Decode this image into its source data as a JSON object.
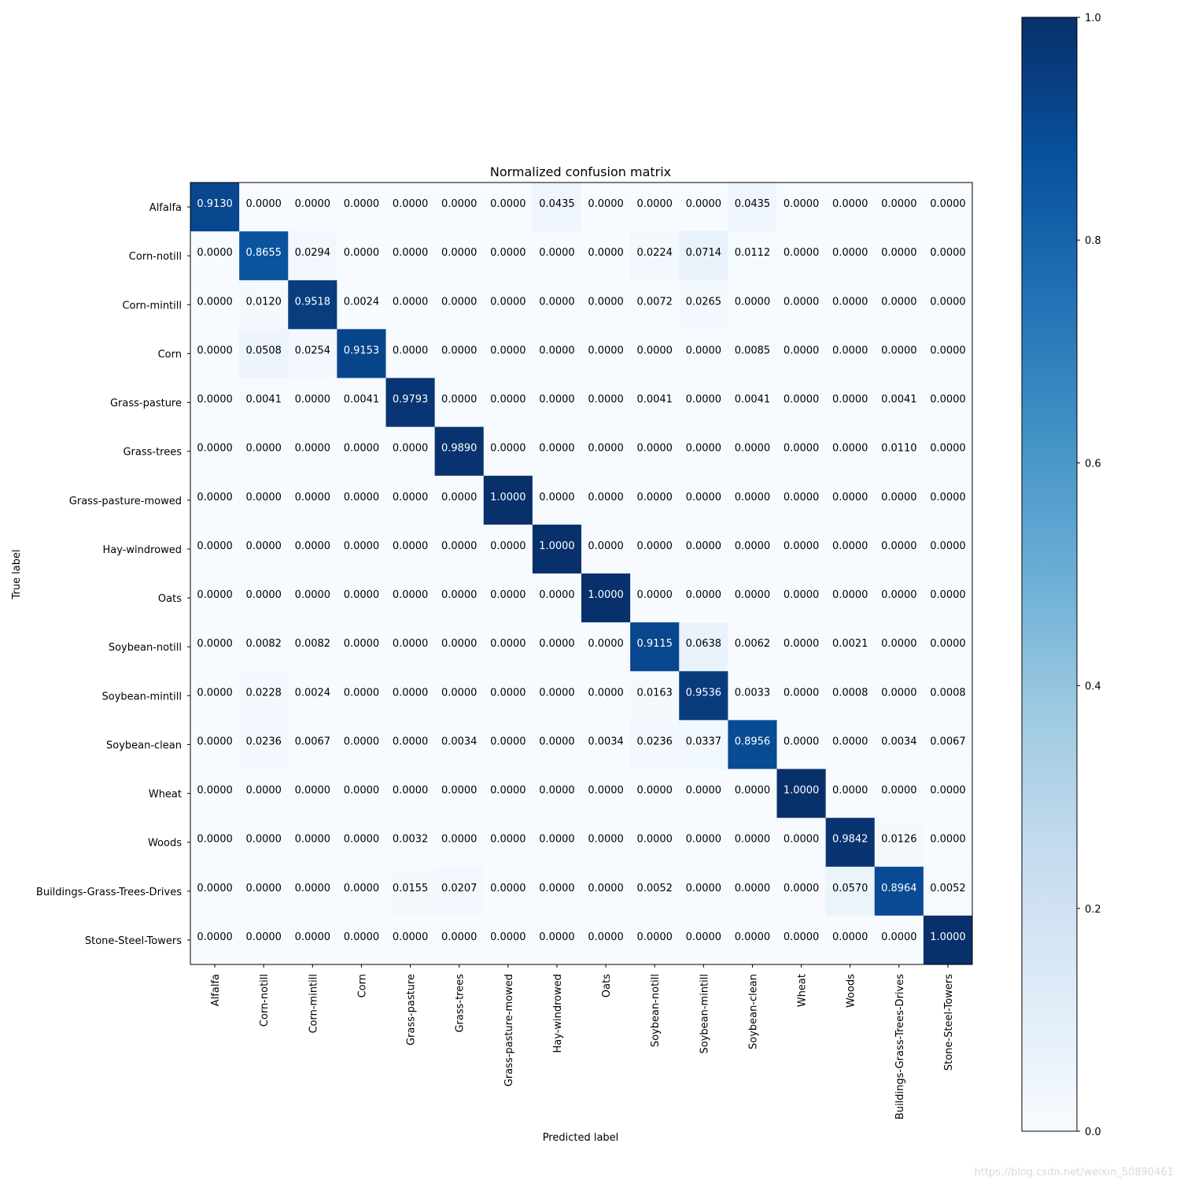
{
  "watermark": "https://blog.csdn.net/weixin_50890461",
  "chart_data": {
    "type": "heatmap",
    "title": "Normalized confusion matrix",
    "xlabel": "Predicted label",
    "ylabel": "True label",
    "colormap": "Blues",
    "colorbar": {
      "range": [
        0.0,
        1.0
      ],
      "ticks": [
        "0.0",
        "0.2",
        "0.4",
        "0.6",
        "0.8",
        "1.0"
      ],
      "colors": [
        "#f7fbff",
        "#deebf7",
        "#c6dbef",
        "#9ecae1",
        "#6baed6",
        "#4292c6",
        "#2171b5",
        "#08519c",
        "#08306b"
      ]
    },
    "labels": [
      "Alfalfa",
      "Corn-notill",
      "Corn-mintill",
      "Corn",
      "Grass-pasture",
      "Grass-trees",
      "Grass-pasture-mowed",
      "Hay-windrowed",
      "Oats",
      "Soybean-notill",
      "Soybean-mintill",
      "Soybean-clean",
      "Wheat",
      "Woods",
      "Buildings-Grass-Trees-Drives",
      "Stone-Steel-Towers"
    ],
    "cells": [
      [
        "0.9130",
        "0.0000",
        "0.0000",
        "0.0000",
        "0.0000",
        "0.0000",
        "0.0000",
        "0.0435",
        "0.0000",
        "0.0000",
        "0.0000",
        "0.0435",
        "0.0000",
        "0.0000",
        "0.0000",
        "0.0000"
      ],
      [
        "0.0000",
        "0.8655",
        "0.0294",
        "0.0000",
        "0.0000",
        "0.0000",
        "0.0000",
        "0.0000",
        "0.0000",
        "0.0224",
        "0.0714",
        "0.0112",
        "0.0000",
        "0.0000",
        "0.0000",
        "0.0000"
      ],
      [
        "0.0000",
        "0.0120",
        "0.9518",
        "0.0024",
        "0.0000",
        "0.0000",
        "0.0000",
        "0.0000",
        "0.0000",
        "0.0072",
        "0.0265",
        "0.0000",
        "0.0000",
        "0.0000",
        "0.0000",
        "0.0000"
      ],
      [
        "0.0000",
        "0.0508",
        "0.0254",
        "0.9153",
        "0.0000",
        "0.0000",
        "0.0000",
        "0.0000",
        "0.0000",
        "0.0000",
        "0.0000",
        "0.0085",
        "0.0000",
        "0.0000",
        "0.0000",
        "0.0000"
      ],
      [
        "0.0000",
        "0.0041",
        "0.0000",
        "0.0041",
        "0.9793",
        "0.0000",
        "0.0000",
        "0.0000",
        "0.0000",
        "0.0041",
        "0.0000",
        "0.0041",
        "0.0000",
        "0.0000",
        "0.0041",
        "0.0000"
      ],
      [
        "0.0000",
        "0.0000",
        "0.0000",
        "0.0000",
        "0.0000",
        "0.9890",
        "0.0000",
        "0.0000",
        "0.0000",
        "0.0000",
        "0.0000",
        "0.0000",
        "0.0000",
        "0.0000",
        "0.0110",
        "0.0000"
      ],
      [
        "0.0000",
        "0.0000",
        "0.0000",
        "0.0000",
        "0.0000",
        "0.0000",
        "1.0000",
        "0.0000",
        "0.0000",
        "0.0000",
        "0.0000",
        "0.0000",
        "0.0000",
        "0.0000",
        "0.0000",
        "0.0000"
      ],
      [
        "0.0000",
        "0.0000",
        "0.0000",
        "0.0000",
        "0.0000",
        "0.0000",
        "0.0000",
        "1.0000",
        "0.0000",
        "0.0000",
        "0.0000",
        "0.0000",
        "0.0000",
        "0.0000",
        "0.0000",
        "0.0000"
      ],
      [
        "0.0000",
        "0.0000",
        "0.0000",
        "0.0000",
        "0.0000",
        "0.0000",
        "0.0000",
        "0.0000",
        "1.0000",
        "0.0000",
        "0.0000",
        "0.0000",
        "0.0000",
        "0.0000",
        "0.0000",
        "0.0000"
      ],
      [
        "0.0000",
        "0.0082",
        "0.0082",
        "0.0000",
        "0.0000",
        "0.0000",
        "0.0000",
        "0.0000",
        "0.0000",
        "0.9115",
        "0.0638",
        "0.0062",
        "0.0000",
        "0.0021",
        "0.0000",
        "0.0000"
      ],
      [
        "0.0000",
        "0.0228",
        "0.0024",
        "0.0000",
        "0.0000",
        "0.0000",
        "0.0000",
        "0.0000",
        "0.0000",
        "0.0163",
        "0.9536",
        "0.0033",
        "0.0000",
        "0.0008",
        "0.0000",
        "0.0008"
      ],
      [
        "0.0000",
        "0.0236",
        "0.0067",
        "0.0000",
        "0.0000",
        "0.0034",
        "0.0000",
        "0.0000",
        "0.0034",
        "0.0236",
        "0.0337",
        "0.8956",
        "0.0000",
        "0.0000",
        "0.0034",
        "0.0067"
      ],
      [
        "0.0000",
        "0.0000",
        "0.0000",
        "0.0000",
        "0.0000",
        "0.0000",
        "0.0000",
        "0.0000",
        "0.0000",
        "0.0000",
        "0.0000",
        "0.0000",
        "1.0000",
        "0.0000",
        "0.0000",
        "0.0000"
      ],
      [
        "0.0000",
        "0.0000",
        "0.0000",
        "0.0000",
        "0.0032",
        "0.0000",
        "0.0000",
        "0.0000",
        "0.0000",
        "0.0000",
        "0.0000",
        "0.0000",
        "0.0000",
        "0.9842",
        "0.0126",
        "0.0000"
      ],
      [
        "0.0000",
        "0.0000",
        "0.0000",
        "0.0000",
        "0.0155",
        "0.0207",
        "0.0000",
        "0.0000",
        "0.0000",
        "0.0052",
        "0.0000",
        "0.0000",
        "0.0000",
        "0.0570",
        "0.8964",
        "0.0052"
      ],
      [
        "0.0000",
        "0.0000",
        "0.0000",
        "0.0000",
        "0.0000",
        "0.0000",
        "0.0000",
        "0.0000",
        "0.0000",
        "0.0000",
        "0.0000",
        "0.0000",
        "0.0000",
        "0.0000",
        "0.0000",
        "1.0000"
      ]
    ]
  }
}
